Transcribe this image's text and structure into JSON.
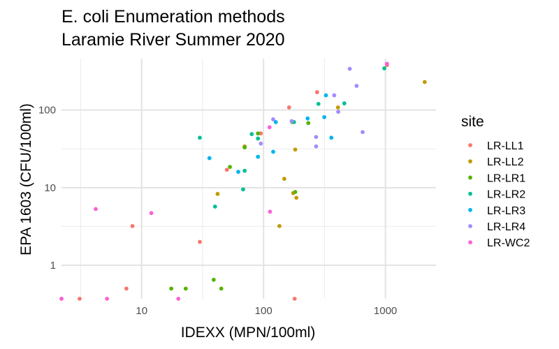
{
  "chart_data": {
    "type": "scatter",
    "title": [
      "E. coli Enumeration methods",
      "Laramie River Summer 2020"
    ],
    "xlabel": "IDEXX (MPN/100ml)",
    "ylabel": "EPA 1603 (CFU/100ml)",
    "x_scale": "log10",
    "y_scale": "log10",
    "xlim": [
      2.2,
      2600
    ],
    "ylim": [
      0.37,
      460
    ],
    "x_ticks": [
      10,
      100,
      1000
    ],
    "x_tick_labels": [
      "10",
      "100",
      "1000"
    ],
    "y_ticks": [
      1,
      10,
      100
    ],
    "y_tick_labels": [
      "1",
      "10",
      "100"
    ],
    "grid": true,
    "legend_title": "site",
    "legend_position": "right",
    "series": [
      {
        "name": "LR-LL1",
        "color": "#F8766D",
        "points": [
          [
            2.2,
            0.37
          ],
          [
            3.1,
            0.37
          ],
          [
            7.5,
            0.5
          ],
          [
            8.4,
            3.2
          ],
          [
            30,
            2
          ],
          [
            50,
            17
          ],
          [
            95,
            50
          ],
          [
            162,
            108
          ],
          [
            180,
            0.37
          ],
          [
            275,
            170
          ],
          [
            1030,
            380
          ]
        ]
      },
      {
        "name": "LR-LL2",
        "color": "#C49A00",
        "points": [
          [
            42,
            8.3
          ],
          [
            70,
            34
          ],
          [
            135,
            3.2
          ],
          [
            148,
            13
          ],
          [
            175,
            8.5
          ],
          [
            182,
            31
          ],
          [
            186,
            7.4
          ],
          [
            408,
            108
          ],
          [
            2100,
            230
          ]
        ]
      },
      {
        "name": "LR-LR1",
        "color": "#53B400",
        "points": [
          [
            17.5,
            0.5
          ],
          [
            23,
            0.5
          ],
          [
            39,
            0.65
          ],
          [
            45,
            0.5
          ],
          [
            53,
            18.5
          ],
          [
            70,
            33
          ],
          [
            90,
            50
          ],
          [
            172,
            70
          ],
          [
            182,
            8.8
          ],
          [
            233,
            68
          ]
        ]
      },
      {
        "name": "LR-LR2",
        "color": "#00C094",
        "points": [
          [
            30,
            44
          ],
          [
            40,
            5.7
          ],
          [
            68,
            9.5
          ],
          [
            70,
            16.5
          ],
          [
            80,
            49
          ],
          [
            90,
            43
          ],
          [
            178,
            70
          ],
          [
            282,
            120
          ],
          [
            460,
            122
          ],
          [
            980,
            345
          ]
        ]
      },
      {
        "name": "LR-LR3",
        "color": "#00B6EB",
        "points": [
          [
            36,
            24
          ],
          [
            62,
            16
          ],
          [
            90,
            25
          ],
          [
            120,
            29
          ],
          [
            126,
            70
          ],
          [
            230,
            78
          ],
          [
            315,
            81
          ],
          [
            325,
            155
          ],
          [
            360,
            44
          ]
        ]
      },
      {
        "name": "LR-LR4",
        "color": "#A58AFF",
        "points": [
          [
            95,
            37
          ],
          [
            120,
            76
          ],
          [
            170,
            72
          ],
          [
            270,
            45
          ],
          [
            270,
            34
          ],
          [
            380,
            155
          ],
          [
            410,
            95
          ],
          [
            510,
            340
          ],
          [
            580,
            205
          ],
          [
            650,
            52
          ]
        ]
      },
      {
        "name": "LR-WC2",
        "color": "#FB61D7",
        "points": [
          [
            2.2,
            0.37
          ],
          [
            4.2,
            5.3
          ],
          [
            5.2,
            0.37
          ],
          [
            12,
            4.7
          ],
          [
            20,
            0.37
          ],
          [
            112,
            60
          ],
          [
            113,
            4.9
          ],
          [
            1030,
            395
          ]
        ]
      }
    ]
  }
}
